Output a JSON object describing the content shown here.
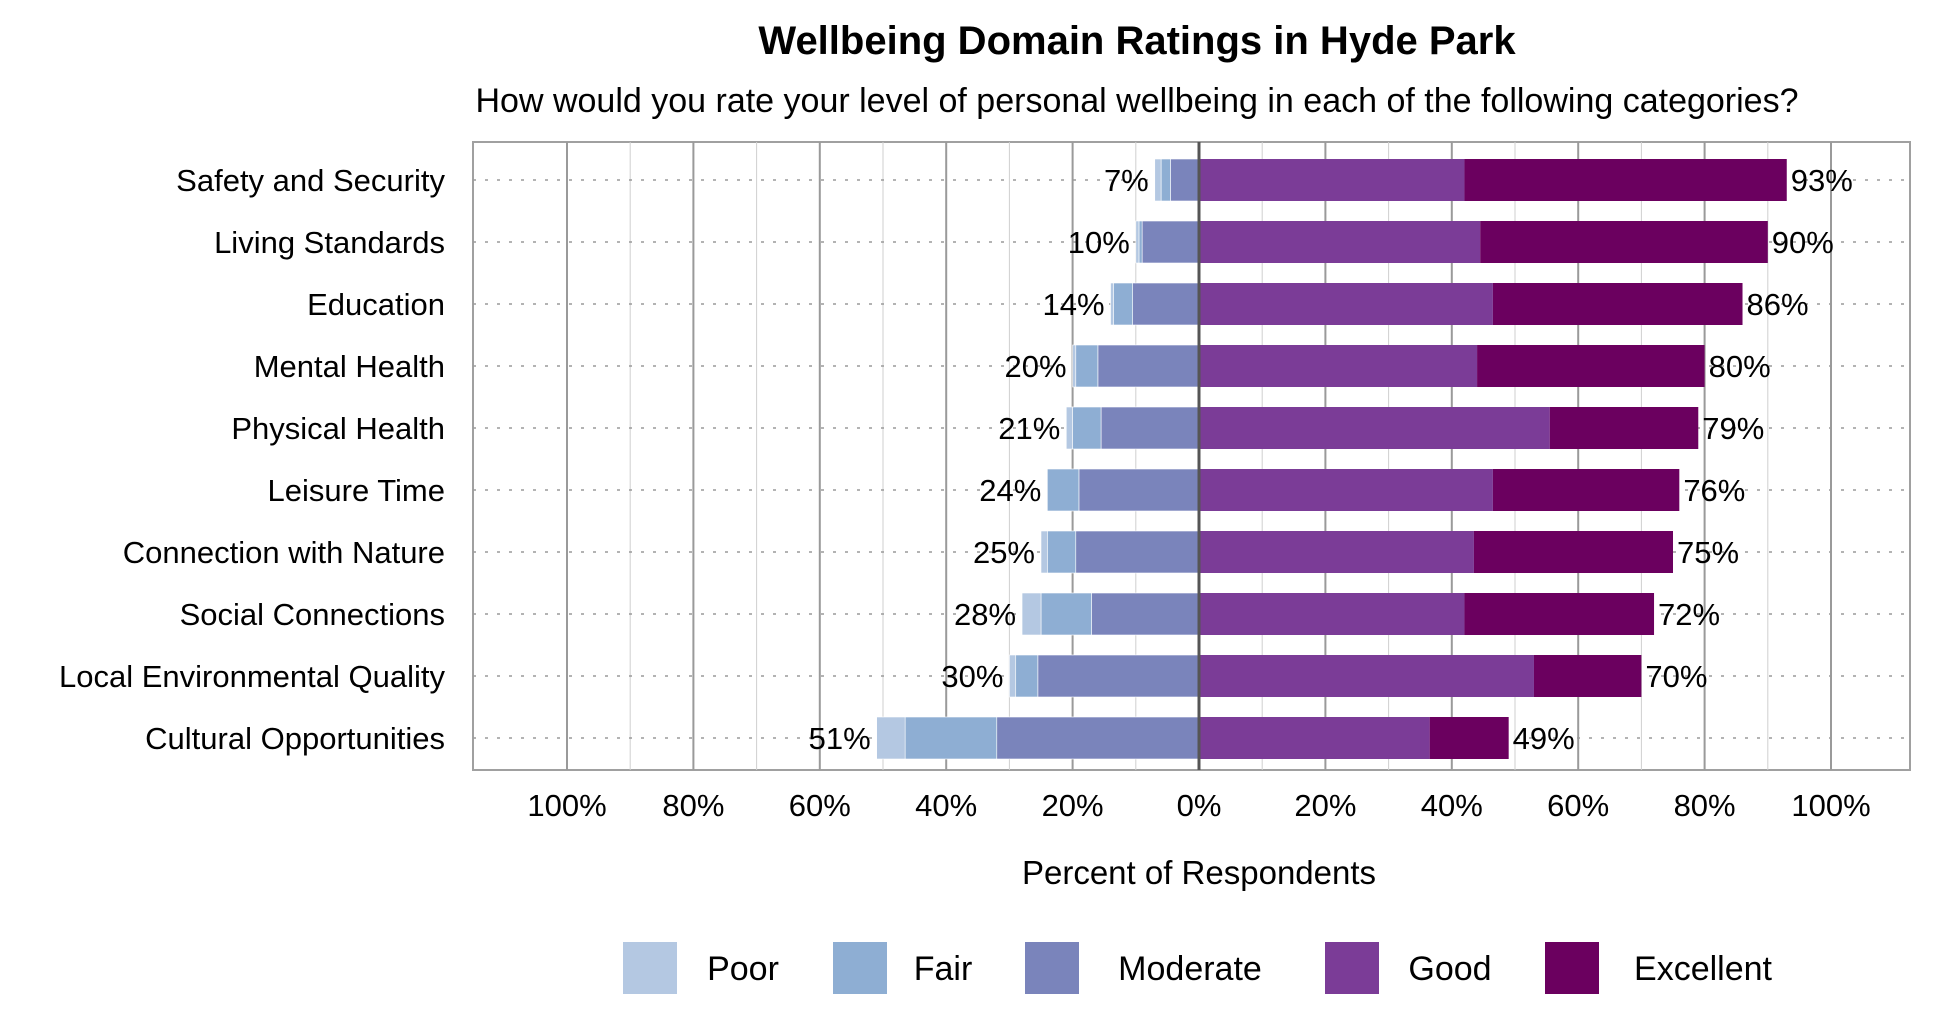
{
  "chart_data": {
    "type": "bar",
    "orientation": "horizontal-diverging",
    "title": "Wellbeing Domain Ratings in Hyde Park",
    "subtitle": "How would you rate your level of personal wellbeing in each of the following categories?",
    "xlabel": "Percent of Respondents",
    "xlim": [
      -100,
      100
    ],
    "xticks": [
      -100,
      -80,
      -60,
      -40,
      -20,
      0,
      20,
      40,
      60,
      80,
      100
    ],
    "xtick_labels": [
      "100%",
      "80%",
      "60%",
      "40%",
      "20%",
      "0%",
      "20%",
      "40%",
      "60%",
      "80%",
      "100%"
    ],
    "grid": true,
    "legend_position": "bottom",
    "categories": [
      "Safety and Security",
      "Living Standards",
      "Education",
      "Mental Health",
      "Physical Health",
      "Leisure Time",
      "Connection with Nature",
      "Social Connections",
      "Local Environmental Quality",
      "Cultural Opportunities"
    ],
    "series": [
      {
        "name": "Poor",
        "side": "negative",
        "color": "#b4c8e2",
        "values": [
          1,
          0.5,
          0.5,
          0.5,
          1,
          0,
          1,
          3,
          1,
          4.5
        ]
      },
      {
        "name": "Fair",
        "side": "negative",
        "color": "#8eaed3",
        "values": [
          1.5,
          0.5,
          3,
          3.5,
          4.5,
          5,
          4.5,
          8,
          3.5,
          14.5
        ]
      },
      {
        "name": "Moderate",
        "side": "negative",
        "color": "#7a84bb",
        "values": [
          4.5,
          9,
          10.5,
          16,
          15.5,
          19,
          19.5,
          17,
          25.5,
          32
        ]
      },
      {
        "name": "Good",
        "side": "positive",
        "color": "#7b3c97",
        "values": [
          42,
          44.5,
          46.5,
          44,
          55.5,
          46.5,
          43.5,
          42,
          53,
          36.5
        ]
      },
      {
        "name": "Excellent",
        "side": "positive",
        "color": "#6b005f",
        "values": [
          51,
          45.5,
          39.5,
          36,
          23.5,
          29.5,
          31.5,
          30,
          17,
          12.5
        ]
      }
    ],
    "negative_totals": [
      "7%",
      "10%",
      "14%",
      "20%",
      "21%",
      "24%",
      "25%",
      "28%",
      "30%",
      "51%"
    ],
    "positive_totals": [
      "93%",
      "90%",
      "86%",
      "80%",
      "79%",
      "76%",
      "75%",
      "72%",
      "70%",
      "49%"
    ]
  }
}
